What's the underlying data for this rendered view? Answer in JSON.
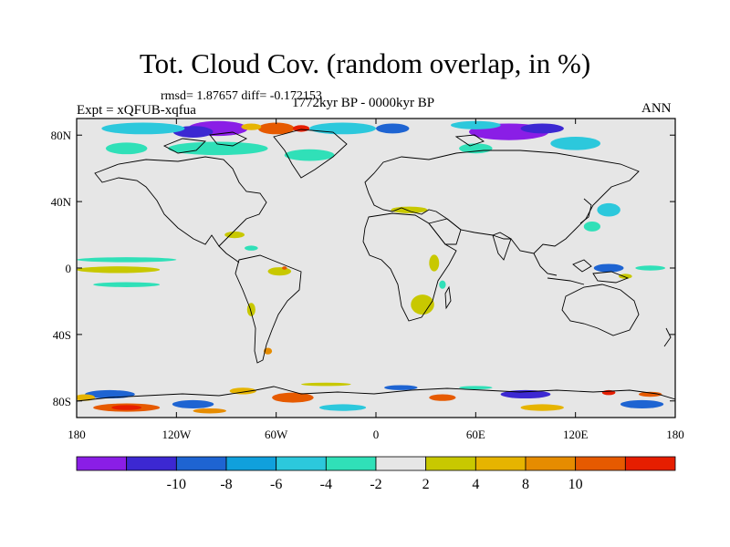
{
  "title": "Tot. Cloud Cov. (random overlap, in %)",
  "stats_text": "rmsd= 1.87657 diff= -0.172153",
  "experiment_text": "Expt = xQFUB-xqfua",
  "period_text": "1772kyr BP - 0000kyr BP",
  "season_text": "ANN",
  "lat_ticks": [
    {
      "label": "80N",
      "value": 80
    },
    {
      "label": "40N",
      "value": 40
    },
    {
      "label": "0",
      "value": 0
    },
    {
      "label": "40S",
      "value": -40
    },
    {
      "label": "80S",
      "value": -80
    }
  ],
  "lon_ticks": [
    {
      "label": "180",
      "value": -180
    },
    {
      "label": "120W",
      "value": -120
    },
    {
      "label": "60W",
      "value": -60
    },
    {
      "label": "0",
      "value": 0
    },
    {
      "label": "60E",
      "value": 60
    },
    {
      "label": "120E",
      "value": 120
    },
    {
      "label": "180",
      "value": 180
    }
  ],
  "colorbar": {
    "colors": [
      "#8a1ee6",
      "#3c28d2",
      "#1e64d2",
      "#10a0dc",
      "#2cc8dc",
      "#30e0b8",
      "#e6e6e6",
      "#c8c800",
      "#e6b400",
      "#e68c00",
      "#e65a00",
      "#e61e00"
    ],
    "tick_labels": [
      "-10",
      "-8",
      "-6",
      "-4",
      "-2",
      "2",
      "4",
      "8",
      "10"
    ]
  },
  "background_color": "#e6e6e6",
  "anomalies": [
    {
      "lon": -95,
      "lat": 84,
      "w": 36,
      "h": 9,
      "color": "#8a1ee6"
    },
    {
      "lon": -110,
      "lat": 82,
      "w": 24,
      "h": 7,
      "color": "#3c28d2"
    },
    {
      "lon": -60,
      "lat": 84,
      "w": 22,
      "h": 7,
      "color": "#e65a00"
    },
    {
      "lon": -45,
      "lat": 84,
      "w": 10,
      "h": 4,
      "color": "#e61e00"
    },
    {
      "lon": -75,
      "lat": 85,
      "w": 12,
      "h": 4,
      "color": "#e6b400"
    },
    {
      "lon": -140,
      "lat": 84,
      "w": 50,
      "h": 7,
      "color": "#2cc8dc"
    },
    {
      "lon": -20,
      "lat": 84,
      "w": 40,
      "h": 7,
      "color": "#2cc8dc"
    },
    {
      "lon": -95,
      "lat": 72,
      "w": 60,
      "h": 8,
      "color": "#30e0b8"
    },
    {
      "lon": -40,
      "lat": 68,
      "w": 30,
      "h": 7,
      "color": "#30e0b8"
    },
    {
      "lon": 80,
      "lat": 82,
      "w": 48,
      "h": 10,
      "color": "#8a1ee6"
    },
    {
      "lon": 100,
      "lat": 84,
      "w": 26,
      "h": 6,
      "color": "#3c28d2"
    },
    {
      "lon": 60,
      "lat": 86,
      "w": 30,
      "h": 5,
      "color": "#2cc8dc"
    },
    {
      "lon": 120,
      "lat": 75,
      "w": 30,
      "h": 8,
      "color": "#2cc8dc"
    },
    {
      "lon": 60,
      "lat": 72,
      "w": 20,
      "h": 6,
      "color": "#30e0b8"
    },
    {
      "lon": -150,
      "lat": 72,
      "w": 25,
      "h": 7,
      "color": "#30e0b8"
    },
    {
      "lon": 10,
      "lat": 84,
      "w": 20,
      "h": 6,
      "color": "#1e64d2"
    },
    {
      "lon": 20,
      "lat": 35,
      "w": 22,
      "h": 4,
      "color": "#c8c800"
    },
    {
      "lon": 140,
      "lat": 35,
      "w": 14,
      "h": 8,
      "color": "#2cc8dc"
    },
    {
      "lon": 130,
      "lat": 25,
      "w": 10,
      "h": 6,
      "color": "#30e0b8"
    },
    {
      "lon": -150,
      "lat": 5,
      "w": 60,
      "h": 3,
      "color": "#30e0b8"
    },
    {
      "lon": -155,
      "lat": -1,
      "w": 50,
      "h": 4,
      "color": "#c8c800"
    },
    {
      "lon": -150,
      "lat": -10,
      "w": 40,
      "h": 3,
      "color": "#30e0b8"
    },
    {
      "lon": -58,
      "lat": -2,
      "w": 14,
      "h": 5,
      "color": "#c8c800"
    },
    {
      "lon": -55,
      "lat": 0,
      "w": 3,
      "h": 2,
      "color": "#e65a00"
    },
    {
      "lon": -85,
      "lat": 20,
      "w": 12,
      "h": 4,
      "color": "#c8c800"
    },
    {
      "lon": -75,
      "lat": 12,
      "w": 8,
      "h": 3,
      "color": "#30e0b8"
    },
    {
      "lon": 28,
      "lat": -22,
      "w": 14,
      "h": 12,
      "color": "#c8c800"
    },
    {
      "lon": 35,
      "lat": 3,
      "w": 6,
      "h": 10,
      "color": "#c8c800"
    },
    {
      "lon": 40,
      "lat": -10,
      "w": 4,
      "h": 5,
      "color": "#30e0b8"
    },
    {
      "lon": 140,
      "lat": 0,
      "w": 18,
      "h": 5,
      "color": "#1e64d2"
    },
    {
      "lon": 165,
      "lat": 0,
      "w": 18,
      "h": 3,
      "color": "#30e0b8"
    },
    {
      "lon": 150,
      "lat": -5,
      "w": 8,
      "h": 3,
      "color": "#c8c800"
    },
    {
      "lon": -75,
      "lat": -25,
      "w": 5,
      "h": 8,
      "color": "#c8c800"
    },
    {
      "lon": -65,
      "lat": -50,
      "w": 5,
      "h": 4,
      "color": "#e68c00"
    },
    {
      "lon": -160,
      "lat": -76,
      "w": 30,
      "h": 5,
      "color": "#1e64d2"
    },
    {
      "lon": -150,
      "lat": -84,
      "w": 40,
      "h": 5,
      "color": "#e65a00"
    },
    {
      "lon": -150,
      "lat": -84,
      "w": 18,
      "h": 3,
      "color": "#e61e00"
    },
    {
      "lon": -110,
      "lat": -82,
      "w": 25,
      "h": 5,
      "color": "#1e64d2"
    },
    {
      "lon": -100,
      "lat": -86,
      "w": 20,
      "h": 3,
      "color": "#e68c00"
    },
    {
      "lon": -50,
      "lat": -78,
      "w": 25,
      "h": 6,
      "color": "#e65a00"
    },
    {
      "lon": -80,
      "lat": -74,
      "w": 16,
      "h": 4,
      "color": "#e6b400"
    },
    {
      "lon": -20,
      "lat": -84,
      "w": 28,
      "h": 4,
      "color": "#2cc8dc"
    },
    {
      "lon": 15,
      "lat": -72,
      "w": 20,
      "h": 3,
      "color": "#1e64d2"
    },
    {
      "lon": 40,
      "lat": -78,
      "w": 16,
      "h": 4,
      "color": "#e65a00"
    },
    {
      "lon": 90,
      "lat": -76,
      "w": 30,
      "h": 5,
      "color": "#3c28d2"
    },
    {
      "lon": 100,
      "lat": -84,
      "w": 26,
      "h": 4,
      "color": "#e6b400"
    },
    {
      "lon": 140,
      "lat": -75,
      "w": 8,
      "h": 3,
      "color": "#e61e00"
    },
    {
      "lon": 160,
      "lat": -82,
      "w": 26,
      "h": 5,
      "color": "#1e64d2"
    },
    {
      "lon": 165,
      "lat": -76,
      "w": 14,
      "h": 3,
      "color": "#e65a00"
    },
    {
      "lon": -175,
      "lat": -78,
      "w": 12,
      "h": 4,
      "color": "#e6b400"
    },
    {
      "lon": 60,
      "lat": -72,
      "w": 20,
      "h": 2,
      "color": "#30e0b8"
    },
    {
      "lon": -30,
      "lat": -70,
      "w": 30,
      "h": 2,
      "color": "#c8c800"
    }
  ]
}
